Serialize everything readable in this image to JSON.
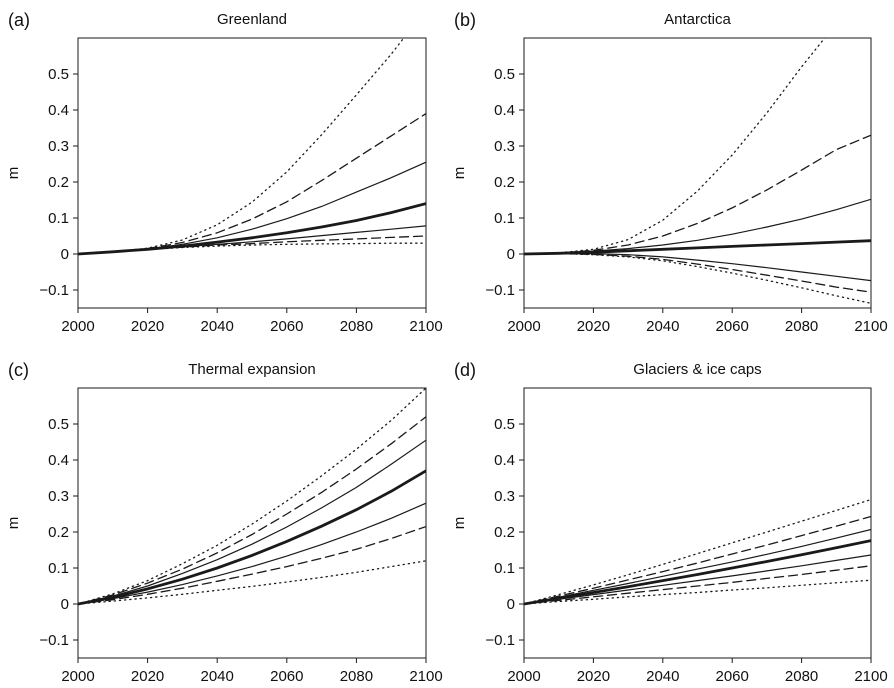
{
  "figure": {
    "background": "#ffffff",
    "line_color": "#1a1a1a"
  },
  "chart_data": [
    {
      "type": "line",
      "panel_label": "(a)",
      "title": "Greenland",
      "xlabel": "",
      "ylabel": "m",
      "xlim": [
        2000,
        2100
      ],
      "ylim": [
        -0.15,
        0.6
      ],
      "xticks": [
        2000,
        2020,
        2040,
        2060,
        2080,
        2100
      ],
      "yticks": [
        -0.1,
        0,
        0.1,
        0.2,
        0.3,
        0.4,
        0.5
      ],
      "x": [
        2000,
        2010,
        2020,
        2030,
        2040,
        2050,
        2060,
        2070,
        2080,
        2090,
        2100
      ],
      "series": [
        {
          "style": "dotted",
          "values": [
            0,
            0.006,
            0.016,
            0.039,
            0.081,
            0.144,
            0.228,
            0.331,
            0.442,
            0.555,
            0.68
          ]
        },
        {
          "style": "dashed",
          "values": [
            0,
            0.006,
            0.015,
            0.032,
            0.059,
            0.097,
            0.145,
            0.204,
            0.266,
            0.328,
            0.39
          ]
        },
        {
          "style": "thin",
          "values": [
            0,
            0.006,
            0.014,
            0.027,
            0.045,
            0.069,
            0.098,
            0.132,
            0.172,
            0.212,
            0.255
          ]
        },
        {
          "style": "thick",
          "values": [
            0,
            0.006,
            0.013,
            0.022,
            0.033,
            0.045,
            0.059,
            0.075,
            0.093,
            0.115,
            0.14
          ]
        },
        {
          "style": "thin",
          "values": [
            0,
            0.006,
            0.013,
            0.02,
            0.027,
            0.034,
            0.042,
            0.051,
            0.06,
            0.069,
            0.078
          ]
        },
        {
          "style": "dashed",
          "values": [
            0,
            0.006,
            0.013,
            0.019,
            0.025,
            0.029,
            0.034,
            0.038,
            0.042,
            0.046,
            0.05
          ]
        },
        {
          "style": "dotted",
          "values": [
            0,
            0.006,
            0.012,
            0.018,
            0.022,
            0.025,
            0.027,
            0.028,
            0.029,
            0.03,
            0.03
          ]
        }
      ]
    },
    {
      "type": "line",
      "panel_label": "(b)",
      "title": "Antarctica",
      "xlabel": "",
      "ylabel": "m",
      "xlim": [
        2000,
        2100
      ],
      "ylim": [
        -0.15,
        0.6
      ],
      "xticks": [
        2000,
        2020,
        2040,
        2060,
        2080,
        2100
      ],
      "yticks": [
        -0.1,
        0,
        0.1,
        0.2,
        0.3,
        0.4,
        0.5
      ],
      "x": [
        2000,
        2010,
        2020,
        2030,
        2040,
        2050,
        2060,
        2070,
        2080,
        2090,
        2100
      ],
      "series": [
        {
          "style": "dotted",
          "values": [
            0,
            0.003,
            0.013,
            0.04,
            0.094,
            0.175,
            0.275,
            0.392,
            0.52,
            0.64,
            0.76
          ]
        },
        {
          "style": "dashed",
          "values": [
            0,
            0.003,
            0.01,
            0.025,
            0.05,
            0.085,
            0.128,
            0.178,
            0.233,
            0.29,
            0.33
          ]
        },
        {
          "style": "thin",
          "values": [
            0,
            0.003,
            0.008,
            0.015,
            0.025,
            0.038,
            0.055,
            0.075,
            0.097,
            0.123,
            0.152
          ]
        },
        {
          "style": "thick",
          "values": [
            0,
            0.002,
            0.005,
            0.009,
            0.013,
            0.017,
            0.021,
            0.025,
            0.029,
            0.033,
            0.037
          ]
        },
        {
          "style": "thin",
          "values": [
            0,
            0.001,
            0.001,
            -0.002,
            -0.008,
            -0.017,
            -0.027,
            -0.038,
            -0.05,
            -0.062,
            -0.074
          ]
        },
        {
          "style": "dashed",
          "values": [
            0,
            0.001,
            -0.001,
            -0.006,
            -0.015,
            -0.028,
            -0.043,
            -0.059,
            -0.075,
            -0.092,
            -0.106
          ]
        },
        {
          "style": "dotted",
          "values": [
            0,
            0.001,
            -0.002,
            -0.008,
            -0.019,
            -0.035,
            -0.053,
            -0.073,
            -0.094,
            -0.116,
            -0.137
          ]
        }
      ]
    },
    {
      "type": "line",
      "panel_label": "(c)",
      "title": "Thermal expansion",
      "xlabel": "",
      "ylabel": "m",
      "xlim": [
        2000,
        2100
      ],
      "ylim": [
        -0.15,
        0.6
      ],
      "xticks": [
        2000,
        2020,
        2040,
        2060,
        2080,
        2100
      ],
      "yticks": [
        -0.1,
        0,
        0.1,
        0.2,
        0.3,
        0.4,
        0.5
      ],
      "x": [
        2000,
        2010,
        2020,
        2030,
        2040,
        2050,
        2060,
        2070,
        2080,
        2090,
        2100
      ],
      "series": [
        {
          "style": "dotted",
          "values": [
            0,
            0.028,
            0.065,
            0.112,
            0.163,
            0.222,
            0.286,
            0.356,
            0.43,
            0.51,
            0.6
          ]
        },
        {
          "style": "dashed",
          "values": [
            0,
            0.025,
            0.058,
            0.097,
            0.142,
            0.193,
            0.25,
            0.31,
            0.375,
            0.445,
            0.52
          ]
        },
        {
          "style": "thin",
          "values": [
            0,
            0.022,
            0.05,
            0.085,
            0.123,
            0.166,
            0.214,
            0.267,
            0.324,
            0.388,
            0.455
          ]
        },
        {
          "style": "thick",
          "values": [
            0,
            0.018,
            0.042,
            0.069,
            0.1,
            0.135,
            0.174,
            0.216,
            0.262,
            0.313,
            0.37
          ]
        },
        {
          "style": "thin",
          "values": [
            0,
            0.015,
            0.033,
            0.054,
            0.078,
            0.104,
            0.133,
            0.165,
            0.2,
            0.238,
            0.28
          ]
        },
        {
          "style": "dashed",
          "values": [
            0,
            0.012,
            0.027,
            0.044,
            0.063,
            0.083,
            0.104,
            0.127,
            0.152,
            0.182,
            0.215
          ]
        },
        {
          "style": "dotted",
          "values": [
            0,
            0.008,
            0.017,
            0.027,
            0.038,
            0.049,
            0.061,
            0.074,
            0.088,
            0.104,
            0.12
          ]
        }
      ]
    },
    {
      "type": "line",
      "panel_label": "(d)",
      "title": "Glaciers & ice caps",
      "xlabel": "",
      "ylabel": "m",
      "xlim": [
        2000,
        2100
      ],
      "ylim": [
        -0.15,
        0.6
      ],
      "xticks": [
        2000,
        2020,
        2040,
        2060,
        2080,
        2100
      ],
      "yticks": [
        -0.1,
        0,
        0.1,
        0.2,
        0.3,
        0.4,
        0.5
      ],
      "x": [
        2000,
        2010,
        2020,
        2030,
        2040,
        2050,
        2060,
        2070,
        2080,
        2090,
        2100
      ],
      "series": [
        {
          "style": "dotted",
          "values": [
            0,
            0.026,
            0.053,
            0.081,
            0.11,
            0.14,
            0.17,
            0.2,
            0.23,
            0.26,
            0.29
          ]
        },
        {
          "style": "dashed",
          "values": [
            0,
            0.022,
            0.044,
            0.067,
            0.09,
            0.114,
            0.139,
            0.164,
            0.19,
            0.216,
            0.243
          ]
        },
        {
          "style": "thin",
          "values": [
            0,
            0.019,
            0.038,
            0.057,
            0.077,
            0.097,
            0.117,
            0.138,
            0.16,
            0.183,
            0.207
          ]
        },
        {
          "style": "thick",
          "values": [
            0,
            0.016,
            0.032,
            0.048,
            0.065,
            0.082,
            0.1,
            0.118,
            0.137,
            0.156,
            0.176
          ]
        },
        {
          "style": "thin",
          "values": [
            0,
            0.013,
            0.026,
            0.039,
            0.052,
            0.065,
            0.078,
            0.092,
            0.106,
            0.121,
            0.136
          ]
        },
        {
          "style": "dashed",
          "values": [
            0,
            0.01,
            0.02,
            0.03,
            0.04,
            0.05,
            0.06,
            0.071,
            0.082,
            0.094,
            0.106
          ]
        },
        {
          "style": "dotted",
          "values": [
            0,
            0.007,
            0.013,
            0.02,
            0.026,
            0.032,
            0.039,
            0.045,
            0.052,
            0.059,
            0.066
          ]
        }
      ]
    }
  ]
}
